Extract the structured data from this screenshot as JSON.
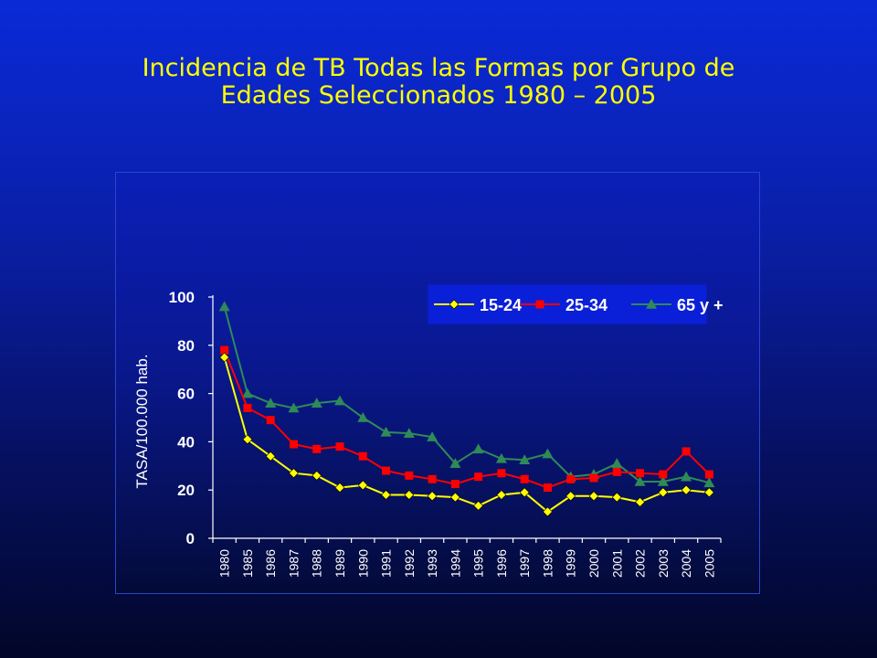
{
  "slide": {
    "title_line1": "Incidencia de TB Todas las Formas por Grupo de",
    "title_line2": "Edades Seleccionados 1980 – 2005"
  },
  "chart_data": {
    "type": "line",
    "ylabel": "TASA/100.000 hab.",
    "xlabel": "",
    "ylim": [
      0,
      100
    ],
    "yticks": [
      0,
      20,
      40,
      60,
      80,
      100
    ],
    "grid": false,
    "legend_position": "top-right",
    "categories": [
      "1980",
      "1985",
      "1986",
      "1987",
      "1988",
      "1989",
      "1990",
      "1991",
      "1992",
      "1993",
      "1994",
      "1995",
      "1996",
      "1997",
      "1998",
      "1999",
      "2000",
      "2001",
      "2002",
      "2003",
      "2004",
      "2005"
    ],
    "series": [
      {
        "name": "15-24",
        "color": "#ffff00",
        "marker": "diamond",
        "values": [
          75,
          41,
          34,
          27,
          26,
          21,
          22,
          18,
          18,
          17.5,
          17,
          13.5,
          18,
          19,
          11,
          17.5,
          17.5,
          17,
          15,
          19,
          20,
          19
        ]
      },
      {
        "name": "25-34",
        "color": "#ff0000",
        "marker": "square",
        "values": [
          78,
          54,
          49,
          39,
          37,
          38,
          34,
          28,
          26,
          24.5,
          22.5,
          25.5,
          27,
          24.5,
          21,
          24.5,
          25,
          27.5,
          27,
          26.5,
          36,
          26.5
        ]
      },
      {
        "name": "65 y +",
        "color": "#2e8b57",
        "marker": "triangle",
        "values": [
          96,
          60,
          56,
          54,
          56,
          57,
          50,
          44,
          43.5,
          42,
          31,
          37,
          33,
          32.5,
          35,
          25.5,
          26.5,
          31,
          23.5,
          23.5,
          25.5,
          23
        ]
      }
    ]
  }
}
